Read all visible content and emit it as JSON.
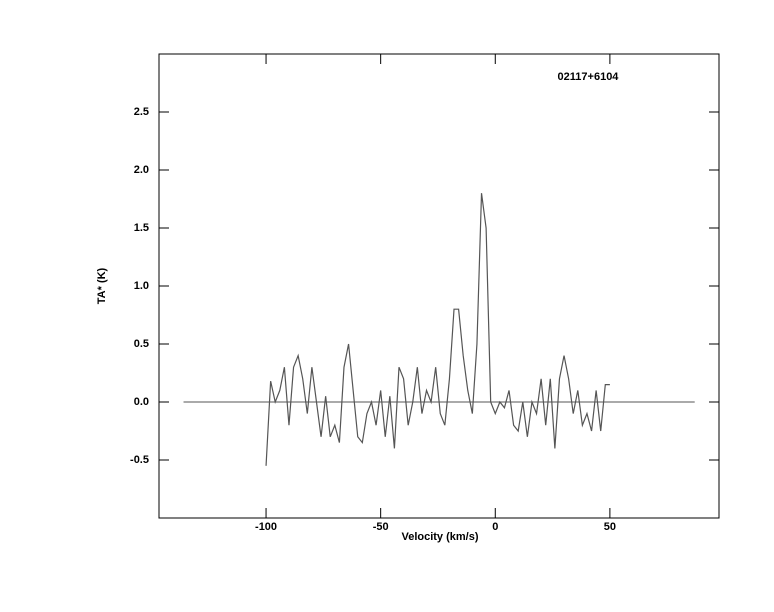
{
  "chart_data": {
    "type": "line",
    "annotation": "02117+6104",
    "xlabel": "Velocity (km/s)",
    "ylabel": "TA* (K)",
    "x": [
      -100,
      -98,
      -96,
      -94,
      -92,
      -90,
      -88,
      -86,
      -84,
      -82,
      -80,
      -78,
      -76,
      -74,
      -72,
      -70,
      -68,
      -66,
      -64,
      -62,
      -60,
      -58,
      -56,
      -54,
      -52,
      -50,
      -48,
      -46,
      -44,
      -42,
      -40,
      -38,
      -36,
      -34,
      -32,
      -30,
      -28,
      -26,
      -24,
      -22,
      -20,
      -18,
      -16,
      -14,
      -12,
      -10,
      -8,
      -6,
      -4,
      -2,
      0,
      2,
      4,
      6,
      8,
      10,
      12,
      14,
      16,
      18,
      20,
      22,
      24,
      26,
      28,
      30,
      32,
      34,
      36,
      38,
      40,
      42,
      44,
      46,
      48,
      50
    ],
    "series": [
      {
        "color": "#555555",
        "values": [
          -0.55,
          0.18,
          0.0,
          0.1,
          0.3,
          -0.2,
          0.3,
          0.4,
          0.2,
          -0.1,
          0.3,
          0.0,
          -0.3,
          0.05,
          -0.3,
          -0.2,
          -0.35,
          0.3,
          0.5,
          0.1,
          -0.3,
          -0.35,
          -0.1,
          0.0,
          -0.2,
          0.1,
          -0.3,
          0.05,
          -0.4,
          0.3,
          0.2,
          -0.2,
          0.0,
          0.3,
          -0.1,
          0.1,
          0.0,
          0.3,
          -0.1,
          -0.2,
          0.2,
          0.8,
          0.8,
          0.4,
          0.1,
          -0.1,
          0.5,
          1.8,
          1.5,
          0.0,
          -0.1,
          0.0,
          -0.05,
          0.1,
          -0.2,
          -0.25,
          0.0,
          -0.3,
          0.0,
          -0.1,
          0.2,
          -0.2,
          0.2,
          -0.4,
          0.2,
          0.4,
          0.2,
          -0.1,
          0.1,
          -0.2,
          -0.1,
          -0.25,
          0.1,
          -0.25,
          0.15,
          0.15
        ]
      }
    ],
    "baseline": {
      "y": 0,
      "x": [
        -136,
        87
      ]
    },
    "xlim": [
      -146.7,
      97.6
    ],
    "xticks": [
      -100,
      -50,
      0,
      50
    ],
    "ylim": [
      -1,
      3
    ],
    "yticks": [
      -0.5,
      {
        "value": 0,
        "label": "0.0"
      },
      0.5,
      {
        "value": 1,
        "label": "1.0"
      },
      1.5,
      {
        "value": 2,
        "label": "2.0"
      },
      2.5
    ]
  }
}
